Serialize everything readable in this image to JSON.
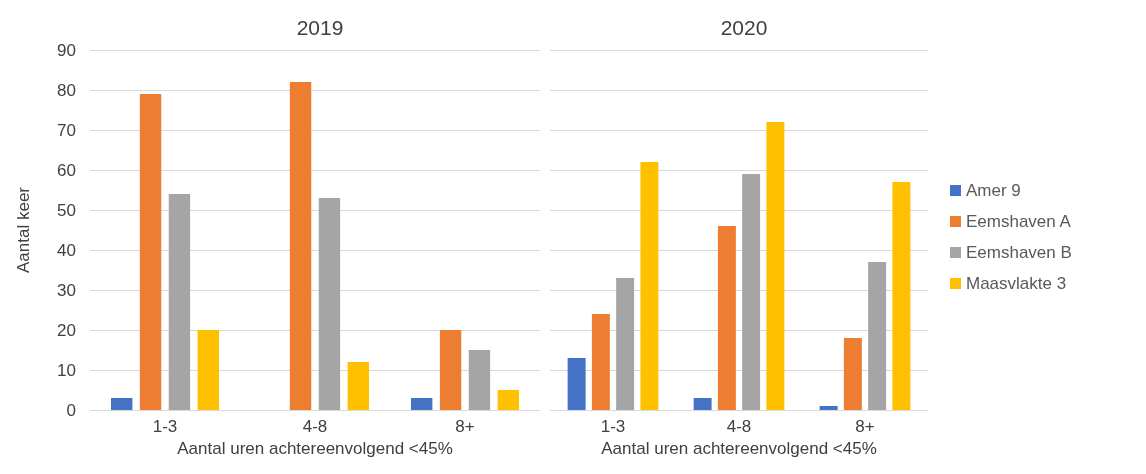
{
  "chart_data": [
    {
      "type": "bar",
      "title": "2019",
      "xlabel": "Aantal uren achtereenvolgend <45%",
      "ylabel": "Aantal keer",
      "categories": [
        "1-3",
        "4-8",
        "8+"
      ],
      "ylim": [
        0,
        90
      ],
      "yticks": [
        0,
        10,
        20,
        30,
        40,
        50,
        60,
        70,
        80,
        90
      ],
      "grid": "y",
      "legend": false,
      "series": [
        {
          "color": "#4472c4",
          "values": [
            3,
            0,
            3
          ]
        },
        {
          "color": "#ed7d31",
          "values": [
            79,
            82,
            20
          ]
        },
        {
          "color": "#a5a5a5",
          "values": [
            54,
            53,
            15
          ]
        },
        {
          "color": "#ffc000",
          "values": [
            20,
            12,
            5
          ]
        }
      ]
    },
    {
      "type": "bar",
      "title": "2020",
      "xlabel": "Aantal uren achtereenvolgend <45%",
      "categories": [
        "1-3",
        "4-8",
        "8+"
      ],
      "ylim": [
        0,
        90
      ],
      "yticks": [
        0,
        10,
        20,
        30,
        40,
        50,
        60,
        70,
        80,
        90
      ],
      "grid": "y",
      "tick_labels": "x",
      "legend": "right",
      "series": [
        {
          "name": "Amer 9",
          "color": "#4472c4",
          "values": [
            13,
            3,
            1
          ]
        },
        {
          "name": "Eemshaven A",
          "color": "#ed7d31",
          "values": [
            24,
            46,
            18
          ]
        },
        {
          "name": "Eemshaven B",
          "color": "#a5a5a5",
          "values": [
            33,
            59,
            37
          ]
        },
        {
          "name": "Maasvlakte 3",
          "color": "#ffc000",
          "values": [
            62,
            72,
            57
          ]
        }
      ]
    }
  ]
}
